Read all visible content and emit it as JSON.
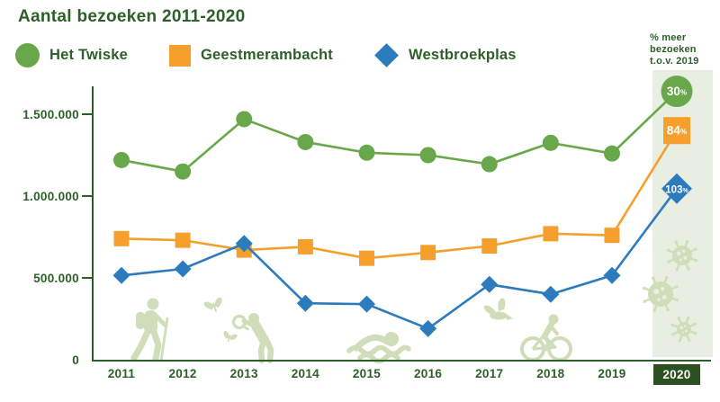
{
  "title": "Aantal bezoeken 2011-2020",
  "right_header": "% meer bezoeken t.o.v. 2019",
  "legend": [
    {
      "label": "Het Twiske",
      "marker": "circle",
      "color": "#69A74B"
    },
    {
      "label": "Geestmerambacht",
      "marker": "square",
      "color": "#F5A02C"
    },
    {
      "label": "Westbroekplas",
      "marker": "diamond",
      "color": "#2B7BBD"
    }
  ],
  "colors": {
    "text": "#2D5F28",
    "axis": "#2D5F28",
    "year_box": "#2A511F",
    "year_box_text": "#FFFFFF",
    "highlight_band": "#E9EEE2",
    "decoration": "#CFDEB8",
    "series_green": "#69A74B",
    "series_orange": "#F5A02C",
    "series_blue": "#2B7BBD"
  },
  "icons": {
    "decorations": [
      "hiker-icon",
      "butterfly-icon",
      "researcher-magnifier-icon",
      "swimmer-icon",
      "bird-icon",
      "cyclist-icon",
      "virus-icon"
    ]
  },
  "chart_data": {
    "type": "line",
    "title": "Aantal bezoeken 2011-2020",
    "categories": [
      "2011",
      "2012",
      "2013",
      "2014",
      "2015",
      "2016",
      "2017",
      "2018",
      "2019",
      "2020"
    ],
    "series": [
      {
        "name": "Het Twiske",
        "marker": "circle",
        "color": "#69A74B",
        "values": [
          1220000,
          1150000,
          1470000,
          1330000,
          1265000,
          1250000,
          1195000,
          1325000,
          1260000,
          1640000
        ],
        "pct_more_2020": "30%"
      },
      {
        "name": "Geestmerambacht",
        "marker": "square",
        "color": "#F5A02C",
        "values": [
          740000,
          730000,
          670000,
          690000,
          620000,
          655000,
          695000,
          770000,
          760000,
          1400000
        ],
        "pct_more_2020": "84%"
      },
      {
        "name": "Westbroekplas",
        "marker": "diamond",
        "color": "#2B7BBD",
        "values": [
          515000,
          555000,
          710000,
          345000,
          340000,
          190000,
          460000,
          400000,
          515000,
          1045000
        ],
        "pct_more_2020": "103%"
      }
    ],
    "yticks": [
      {
        "value": 0,
        "label": "0"
      },
      {
        "value": 500000,
        "label": "500.000"
      },
      {
        "value": 1000000,
        "label": "1.000.000"
      },
      {
        "value": 1500000,
        "label": "1.500.000"
      }
    ],
    "ylim": [
      0,
      1650000
    ],
    "xlabel": "",
    "ylabel": "",
    "grid": false,
    "legend_position": "top",
    "highlight": {
      "year": "2020",
      "header": "% meer bezoeken t.o.v. 2019"
    }
  }
}
